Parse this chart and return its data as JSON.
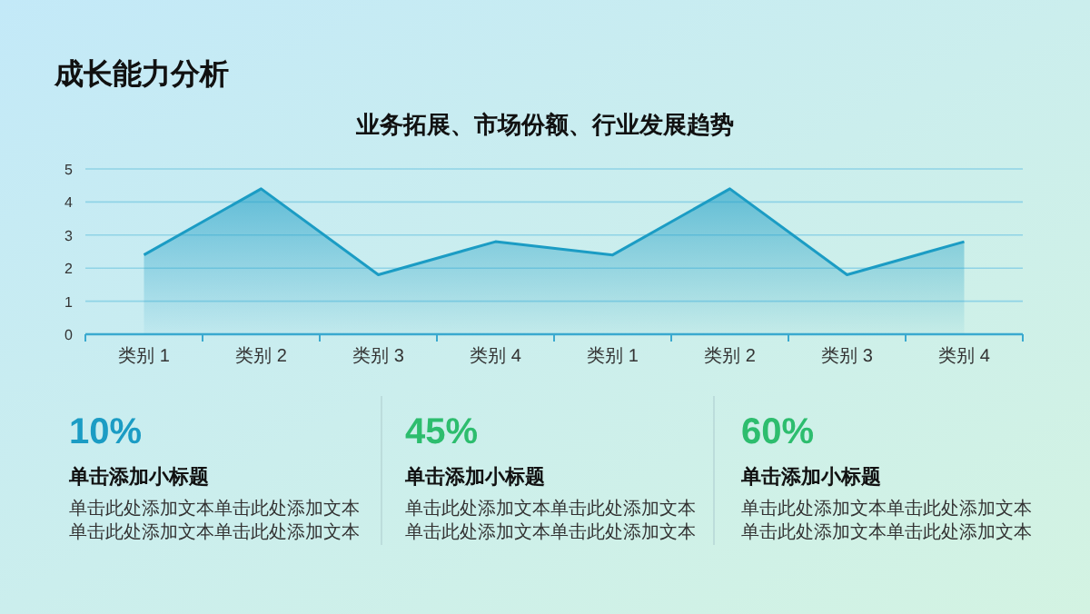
{
  "chart_data": [
    {
      "type": "area",
      "title": "成长能力分析",
      "subtitle": "业务拓展、市场份额、行业发展趋势",
      "categories": [
        "类别 1",
        "类别 2",
        "类别 3",
        "类别 4",
        "类别 1",
        "类别 2",
        "类别 3",
        "类别 4"
      ],
      "series": [
        {
          "color": "#1b9cc4",
          "values": [
            2.4,
            4.4,
            1.8,
            2.8,
            2.4,
            4.4,
            1.8,
            2.8
          ]
        }
      ],
      "ylim": [
        0,
        5
      ],
      "yticks": [
        0,
        1,
        2,
        3,
        4,
        5
      ],
      "grid": "y"
    },
    {
      "type": "other",
      "annotations": [
        "10%",
        "单击添加小标题",
        "单击此处添加文本单击此处添加文本单击此处添加文本单击此处添加文本",
        "45%",
        "单击添加小标题",
        "单击此处添加文本单击此处添加文本单击此处添加文本单击此处添加文本",
        "60%",
        "单击添加小标题",
        "单击此处添加文本单击此处添加文本单击此处添加文本单击此处添加文本"
      ]
    }
  ]
}
